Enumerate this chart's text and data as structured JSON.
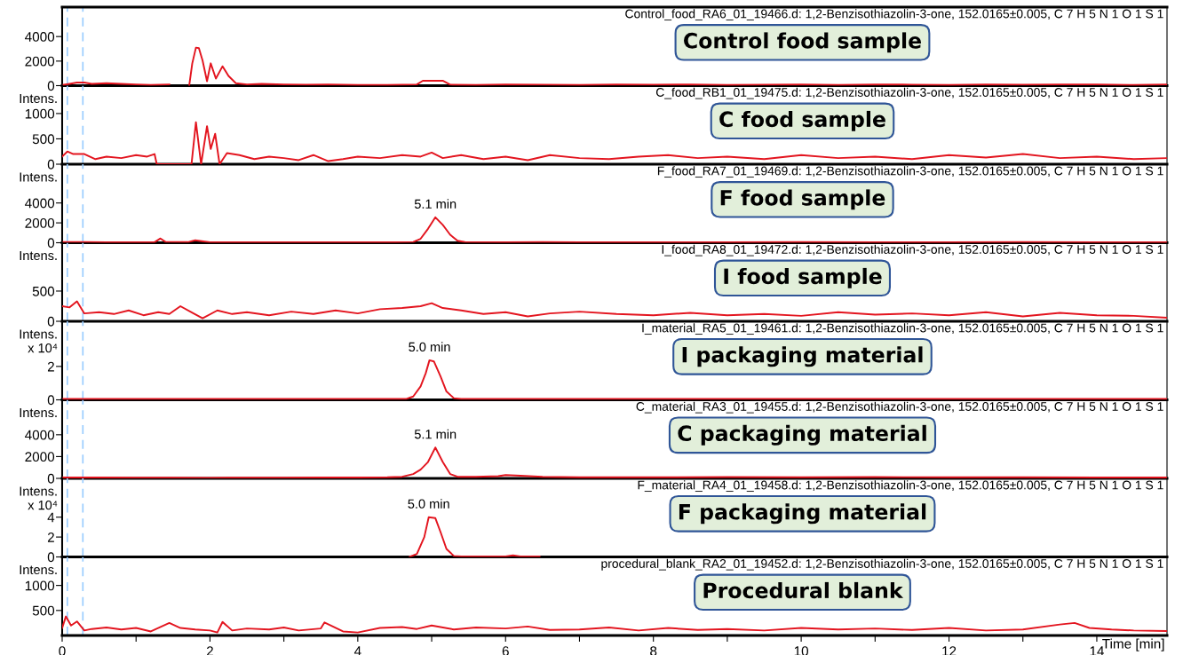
{
  "chart_data": [
    {
      "type": "line",
      "title": "Control_food_RA6_01_19466.d: 1,2-Benzisothiazolin-3-one, 152.0165±0.005, C 7 H 5 N 1 O 1 S 1",
      "color": "#e3151f",
      "x": [
        0,
        0.1,
        0.2,
        0.3,
        0.4,
        0.6,
        0.8,
        1.0,
        1.2,
        1.45,
        1.6,
        1.72,
        1.76,
        1.81,
        1.85,
        1.9,
        1.96,
        2.01,
        2.08,
        2.17,
        2.25,
        2.35,
        2.5,
        2.7,
        3.0,
        3.3,
        3.6,
        4.0,
        4.4,
        4.8,
        4.88,
        5.0,
        5.15,
        5.25,
        5.6,
        6.0,
        6.5,
        7.0,
        7.5,
        8.0,
        8.5,
        9.0,
        9.5,
        10.0,
        10.5,
        11.0,
        11.5,
        12.0,
        12.5,
        13.0,
        13.5,
        14.0,
        14.5,
        14.95
      ],
      "values": [
        50,
        150,
        250,
        250,
        150,
        200,
        150,
        100,
        50,
        100,
        null,
        50,
        1800,
        3100,
        3050,
        2040,
        360,
        1820,
        580,
        1580,
        800,
        200,
        100,
        150,
        100,
        80,
        100,
        50,
        50,
        100,
        400,
        400,
        400,
        80,
        50,
        100,
        80,
        50,
        100,
        80,
        100,
        50,
        80,
        100,
        50,
        100,
        80,
        50,
        100,
        80,
        100,
        100,
        50,
        100
      ],
      "xlim": [
        0,
        14.95
      ],
      "ylim": [
        0,
        6400
      ],
      "yticks": [
        0,
        2000,
        4000
      ],
      "tick_labels": "y",
      "grid": false,
      "annotations": [
        "Control food sample"
      ],
      "ref_lines": [
        {
          "axis": "x",
          "value": 0.07,
          "color": "#99ccff",
          "line_style": "dashed"
        },
        {
          "axis": "x",
          "value": 0.28,
          "color": "#99ccff",
          "line_style": "dashed"
        }
      ]
    },
    {
      "type": "line",
      "title": "C_food_RB1_01_19475.d: 1,2-Benzisothiazolin-3-one, 152.0165±0.005, C 7 H 5 N 1 O 1 S 1",
      "ylabel": "Intens.",
      "color": "#e3151f",
      "x": [
        0,
        0.07,
        0.15,
        0.3,
        0.45,
        0.6,
        0.8,
        1.0,
        1.15,
        1.25,
        1.28,
        1.75,
        1.81,
        1.88,
        1.96,
        2.01,
        2.07,
        2.13,
        2.23,
        2.4,
        2.6,
        2.8,
        3.0,
        3.2,
        3.4,
        3.6,
        3.8,
        4.0,
        4.3,
        4.6,
        4.85,
        5.0,
        5.15,
        5.4,
        5.7,
        6.0,
        6.3,
        6.6,
        7.0,
        7.4,
        7.8,
        8.2,
        8.6,
        9.0,
        9.5,
        10.0,
        10.5,
        11.0,
        11.5,
        12.0,
        12.5,
        13.0,
        13.5,
        14.0,
        14.5,
        14.95
      ],
      "values": [
        150,
        250,
        200,
        200,
        100,
        150,
        120,
        180,
        150,
        200,
        0,
        0,
        830,
        0,
        750,
        300,
        600,
        0,
        220,
        180,
        100,
        150,
        120,
        80,
        180,
        60,
        100,
        150,
        120,
        180,
        150,
        230,
        120,
        180,
        100,
        150,
        80,
        180,
        120,
        100,
        150,
        180,
        120,
        150,
        100,
        180,
        120,
        150,
        100,
        180,
        130,
        200,
        120,
        150,
        100,
        120
      ],
      "xlim": [
        0,
        14.95
      ],
      "ylim": [
        0,
        1550
      ],
      "yticks": [
        0,
        500,
        1000
      ],
      "tick_labels": "y",
      "grid": false,
      "annotations": [
        "C food sample"
      ],
      "ref_lines": [
        {
          "axis": "x",
          "value": 0.07,
          "color": "#99ccff",
          "line_style": "dashed"
        },
        {
          "axis": "x",
          "value": 0.28,
          "color": "#99ccff",
          "line_style": "dashed"
        }
      ]
    },
    {
      "type": "line",
      "title": "F_food_RA7_01_19469.d: 1,2-Benzisothiazolin-3-one, 152.0165±0.005, C 7 H 5 N 1 O 1 S 1",
      "ylabel": "Intens.",
      "color": "#e3151f",
      "x": [
        0,
        0.3,
        0.6,
        1.0,
        1.25,
        1.33,
        1.4,
        1.7,
        1.8,
        2.0,
        2.5,
        3.0,
        3.5,
        4.0,
        4.5,
        4.75,
        4.85,
        4.95,
        5.05,
        5.15,
        5.25,
        5.35,
        5.45,
        6.0,
        6.5,
        7.0,
        8.0,
        9.0,
        10.0,
        11.0,
        12.0,
        13.0,
        14.0,
        14.95
      ],
      "values": [
        80,
        80,
        50,
        50,
        50,
        430,
        80,
        60,
        250,
        50,
        50,
        50,
        50,
        50,
        50,
        80,
        400,
        1400,
        2560,
        1800,
        800,
        200,
        60,
        50,
        60,
        50,
        50,
        50,
        60,
        50,
        50,
        60,
        50,
        50
      ],
      "xlim": [
        0,
        14.95
      ],
      "ylim": [
        0,
        7900
      ],
      "yticks": [
        0,
        2000,
        4000
      ],
      "tick_labels": "y",
      "grid": false,
      "annotations": [
        {
          "text": "5.1 min",
          "x": 5.05,
          "y": 2560
        },
        "F food sample"
      ],
      "ref_lines": [
        {
          "axis": "x",
          "value": 0.07,
          "color": "#99ccff",
          "line_style": "dashed"
        },
        {
          "axis": "x",
          "value": 0.28,
          "color": "#99ccff",
          "line_style": "dashed"
        }
      ]
    },
    {
      "type": "line",
      "title": "I_food_RA8_01_19472.d: 1,2-Benzisothiazolin-3-one, 152.0165±0.005, C 7 H 5 N 1 O 1 S 1",
      "ylabel": "Intens.",
      "color": "#e3151f",
      "x": [
        0,
        0.1,
        0.2,
        0.3,
        0.5,
        0.7,
        0.9,
        1.1,
        1.3,
        1.45,
        1.6,
        1.75,
        1.9,
        2.1,
        2.3,
        2.5,
        2.8,
        3.1,
        3.4,
        3.7,
        4.0,
        4.3,
        4.6,
        4.85,
        5.0,
        5.15,
        5.4,
        5.7,
        6.0,
        6.3,
        6.6,
        7.0,
        7.5,
        8.0,
        8.5,
        9.0,
        9.5,
        10.0,
        10.5,
        11.0,
        11.5,
        12.0,
        12.5,
        13.0,
        13.5,
        14.0,
        14.5,
        14.95
      ],
      "values": [
        250,
        230,
        330,
        130,
        150,
        120,
        180,
        100,
        150,
        120,
        250,
        150,
        50,
        180,
        120,
        150,
        100,
        160,
        120,
        180,
        130,
        200,
        220,
        250,
        300,
        220,
        180,
        120,
        150,
        80,
        130,
        160,
        120,
        100,
        140,
        100,
        120,
        90,
        150,
        110,
        130,
        100,
        150,
        80,
        140,
        100,
        90,
        60
      ],
      "xlim": [
        0,
        14.95
      ],
      "ylim": [
        0,
        1300
      ],
      "yticks": [
        0,
        500
      ],
      "tick_labels": "y",
      "grid": false,
      "annotations": [
        "I food sample"
      ],
      "ref_lines": [
        {
          "axis": "x",
          "value": 0.07,
          "color": "#99ccff",
          "line_style": "dashed"
        },
        {
          "axis": "x",
          "value": 0.28,
          "color": "#99ccff",
          "line_style": "dashed"
        }
      ]
    },
    {
      "type": "line",
      "title": "I_material_RA5_01_19461.d: 1,2-Benzisothiazolin-3-one, 152.0165±0.005, C 7 H 5 N 1 O 1 S 1",
      "ylabel": "Intens.\nx 10⁴",
      "color": "#e3151f",
      "x": [
        0,
        0.5,
        1.0,
        2.0,
        3.0,
        3.8,
        4.5,
        4.65,
        4.75,
        4.85,
        4.92,
        4.97,
        5.03,
        5.12,
        5.2,
        5.3,
        5.4,
        6.0,
        7.0,
        8.0,
        9.0,
        10.0,
        11.0,
        12.0,
        13.0,
        14.0,
        14.95
      ],
      "values": [
        0.05,
        0.05,
        0.05,
        0.05,
        0.05,
        0.05,
        0.05,
        0.05,
        0.2,
        0.8,
        1.6,
        2.37,
        2.3,
        1.4,
        0.5,
        0.1,
        0.05,
        0.05,
        0.05,
        0.05,
        0.05,
        0.05,
        0.05,
        0.05,
        0.05,
        0.05,
        0.05
      ],
      "xlim": [
        0,
        14.95
      ],
      "ylim": [
        0,
        4.7
      ],
      "yticks": [
        0,
        2
      ],
      "tick_labels": "y",
      "grid": false,
      "annotations": [
        {
          "text": "5.0 min",
          "x": 4.97,
          "y": 2.37
        },
        "I packaging material"
      ],
      "ref_lines": [
        {
          "axis": "x",
          "value": 0.07,
          "color": "#99ccff",
          "line_style": "dashed"
        },
        {
          "axis": "x",
          "value": 0.28,
          "color": "#99ccff",
          "line_style": "dashed"
        }
      ]
    },
    {
      "type": "line",
      "title": "C_material_RA3_01_19455.d: 1,2-Benzisothiazolin-3-one, 152.0165±0.005, C 7 H 5 N 1 O 1 S 1",
      "ylabel": "Intens.",
      "color": "#e3151f",
      "x": [
        0,
        0.5,
        1.0,
        1.5,
        2.0,
        2.5,
        3.0,
        3.5,
        4.0,
        4.4,
        4.6,
        4.75,
        4.85,
        4.95,
        5.05,
        5.15,
        5.25,
        5.35,
        5.6,
        5.9,
        6.0,
        6.2,
        6.5,
        7.0,
        8.0,
        9.0,
        10.0,
        11.0,
        12.0,
        13.0,
        14.0,
        14.95
      ],
      "values": [
        80,
        80,
        60,
        60,
        50,
        60,
        60,
        80,
        80,
        100,
        150,
        400,
        800,
        1500,
        2830,
        1500,
        400,
        150,
        150,
        200,
        300,
        250,
        150,
        100,
        100,
        120,
        100,
        120,
        100,
        100,
        80,
        80
      ],
      "xlim": [
        0,
        14.95
      ],
      "ylim": [
        0,
        7200
      ],
      "yticks": [
        0,
        2000,
        4000
      ],
      "tick_labels": "y",
      "grid": false,
      "annotations": [
        {
          "text": "5.1 min",
          "x": 5.05,
          "y": 2830
        },
        "C packaging material"
      ],
      "ref_lines": [
        {
          "axis": "x",
          "value": 0.07,
          "color": "#99ccff",
          "line_style": "dashed"
        },
        {
          "axis": "x",
          "value": 0.28,
          "color": "#99ccff",
          "line_style": "dashed"
        }
      ]
    },
    {
      "type": "line",
      "title": "F_material_RA4_01_19458.d: 1,2-Benzisothiazolin-3-one, 152.0165±0.005, C 7 H 5 N 1 O 1 S 1",
      "ylabel": "Intens.\nx 10⁴",
      "color": "#e3151f",
      "x": [
        4.7,
        4.8,
        4.9,
        4.96,
        5.05,
        5.12,
        5.2,
        5.3,
        5.4,
        5.7,
        6.0,
        6.1,
        6.2,
        6.46
      ],
      "values": [
        0,
        0.3,
        2.0,
        3.99,
        3.9,
        2.5,
        0.8,
        0.1,
        0.05,
        0.05,
        0.05,
        0.15,
        0.05,
        0.05
      ],
      "xlim": [
        0,
        14.95
      ],
      "ylim": [
        0,
        7.9
      ],
      "yticks": [
        0,
        2,
        4
      ],
      "tick_labels": "y",
      "grid": false,
      "annotations": [
        {
          "text": "5.0 min",
          "x": 4.96,
          "y": 4.0
        },
        "F packaging material"
      ],
      "ref_lines": [
        {
          "axis": "x",
          "value": 0.07,
          "color": "#99ccff",
          "line_style": "dashed"
        },
        {
          "axis": "x",
          "value": 0.28,
          "color": "#99ccff",
          "line_style": "dashed"
        }
      ]
    },
    {
      "type": "line",
      "title": "procedural_blank_RA2_01_19452.d: 1,2-Benzisothiazolin-3-one, 152.0165±0.005, C 7 H 5 N 1 O 1 S 1",
      "ylabel": "Intens.",
      "xlabel": "Time [min]",
      "color": "#e3151f",
      "x": [
        0,
        0.05,
        0.12,
        0.2,
        0.3,
        0.4,
        0.6,
        0.8,
        1.0,
        1.2,
        1.45,
        1.6,
        1.8,
        2.0,
        2.1,
        2.17,
        2.3,
        2.5,
        2.8,
        3.0,
        3.2,
        3.5,
        3.55,
        3.8,
        4.0,
        4.3,
        4.6,
        4.8,
        5.0,
        5.3,
        5.6,
        6.0,
        6.3,
        6.6,
        7.0,
        7.4,
        7.8,
        8.2,
        8.6,
        9.0,
        9.5,
        10.0,
        10.5,
        11.0,
        11.5,
        12.0,
        12.5,
        13.0,
        13.5,
        13.7,
        13.9,
        14.2,
        14.5,
        14.95
      ],
      "values": [
        150,
        380,
        200,
        280,
        100,
        130,
        160,
        120,
        150,
        80,
        250,
        150,
        120,
        100,
        60,
        270,
        100,
        140,
        120,
        160,
        100,
        140,
        260,
        80,
        60,
        150,
        170,
        130,
        200,
        120,
        160,
        140,
        180,
        110,
        120,
        160,
        100,
        150,
        110,
        130,
        100,
        150,
        120,
        140,
        110,
        150,
        100,
        120,
        220,
        250,
        150,
        120,
        100,
        90
      ],
      "xlim": [
        0,
        14.95
      ],
      "xticks": [
        0,
        {
          "value": 1,
          "label": null
        },
        2,
        {
          "value": 3,
          "label": null
        },
        4,
        {
          "value": 5,
          "label": null
        },
        6,
        {
          "value": 7,
          "label": null
        },
        8,
        {
          "value": 9,
          "label": null
        },
        10,
        {
          "value": 11,
          "label": null
        },
        12,
        {
          "value": 13,
          "label": null
        },
        14
      ],
      "ylim": [
        0,
        1570
      ],
      "yticks": [
        500,
        1000
      ],
      "grid": false,
      "annotations": [
        "Procedural blank"
      ],
      "ref_lines": [
        {
          "axis": "x",
          "value": 0.07,
          "color": "#99ccff",
          "line_style": "dashed"
        },
        {
          "axis": "x",
          "value": 0.28,
          "color": "#99ccff",
          "line_style": "dashed"
        }
      ]
    }
  ]
}
